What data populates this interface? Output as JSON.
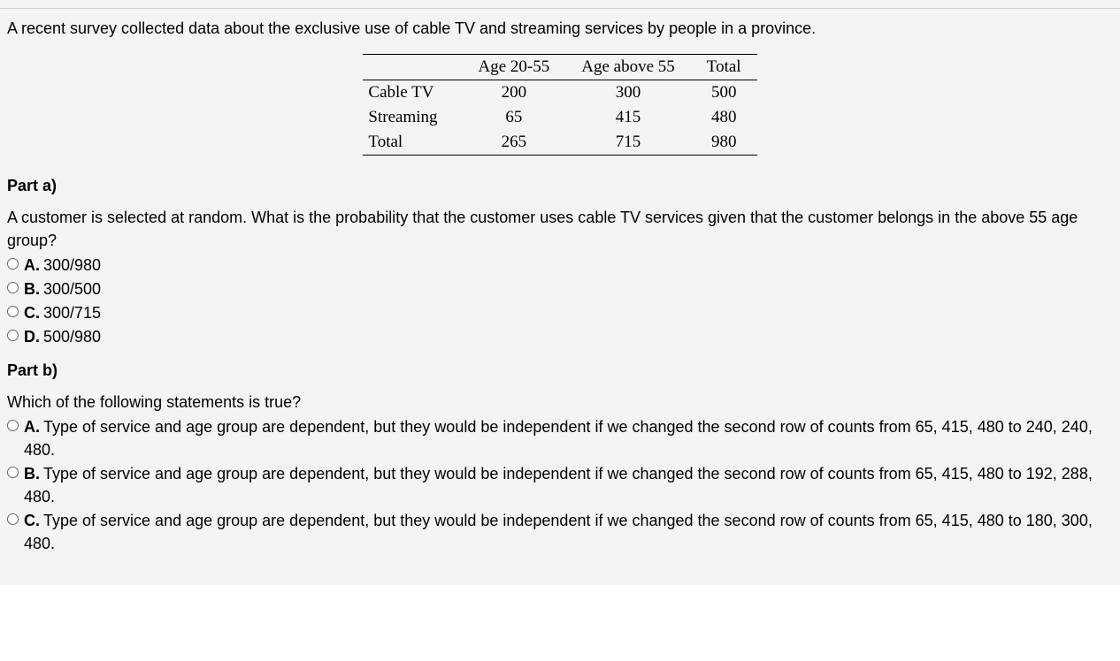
{
  "intro": "A recent survey collected data about the exclusive use of cable TV and streaming services by people in a province.",
  "table": {
    "columns": [
      "Age 20-55",
      "Age above 55",
      "Total"
    ],
    "rows": [
      {
        "label": "Cable TV",
        "cells": [
          "200",
          "300",
          "500"
        ]
      },
      {
        "label": "Streaming",
        "cells": [
          "65",
          "415",
          "480"
        ]
      },
      {
        "label": "Total",
        "cells": [
          "265",
          "715",
          "980"
        ]
      }
    ],
    "font_family": "Georgia, serif",
    "fontsize": 19,
    "border_color": "#000000"
  },
  "part_a": {
    "heading": "Part a)",
    "question": "A customer is selected at random. What is the probability that the customer uses cable TV services given that the customer belongs in the above 55 age group?",
    "options": [
      {
        "letter": "A.",
        "text": "300/980"
      },
      {
        "letter": "B.",
        "text": "300/500"
      },
      {
        "letter": "C.",
        "text": "300/715"
      },
      {
        "letter": "D.",
        "text": "500/980"
      }
    ]
  },
  "part_b": {
    "heading": "Part b)",
    "question": "Which of the following statements is true?",
    "options": [
      {
        "letter": "A.",
        "text": "Type of service and age group are dependent, but they would be independent if we changed the second row of counts from 65, 415, 480 to 240, 240, 480."
      },
      {
        "letter": "B.",
        "text": "Type of service and age group are dependent, but they would be independent if we changed the second row of counts from 65, 415, 480 to 192, 288, 480."
      },
      {
        "letter": "C.",
        "text": "Type of service and age group are dependent, but they would be independent if we changed the second row of counts from 65, 415, 480 to 180, 300, 480."
      }
    ]
  },
  "colors": {
    "background": "#f4f4f4",
    "text": "#000000",
    "radio_border": "#666666",
    "divider": "#d0d0d0"
  }
}
